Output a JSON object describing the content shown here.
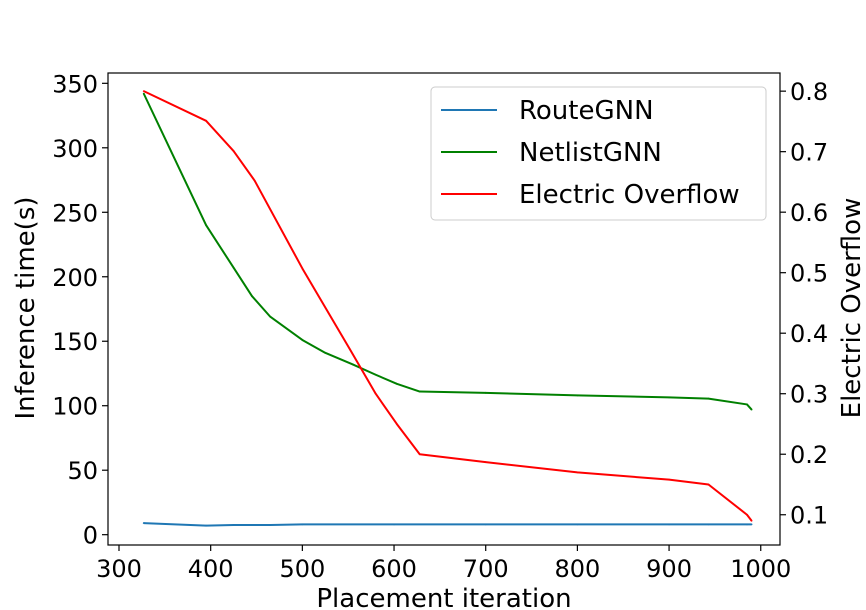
{
  "chart_data": {
    "type": "line",
    "title": "",
    "xlabel": "Placement iteration",
    "ylabel": "Inference time(s)",
    "y2label": "Electric Overflow",
    "xlim": [
      288,
      1021
    ],
    "ylim": [
      -8,
      358
    ],
    "y2lim": [
      0.05,
      0.83
    ],
    "xticks": [
      300,
      400,
      500,
      600,
      700,
      800,
      900,
      1000
    ],
    "yticks": [
      0,
      50,
      100,
      150,
      200,
      250,
      300,
      350
    ],
    "y2ticks": [
      0.1,
      0.2,
      0.3,
      0.4,
      0.5,
      0.6,
      0.7,
      0.8
    ],
    "grid": false,
    "legend_position": "top-right",
    "series": [
      {
        "name": "RouteGNN",
        "axis": "left",
        "color": "#1f77b4",
        "x": [
          327,
          395,
          425,
          465,
          500,
          600,
          700,
          800,
          900,
          943,
          985,
          990
        ],
        "y": [
          9,
          7,
          7.5,
          7.5,
          8,
          8,
          8,
          8,
          8,
          8,
          8,
          8
        ]
      },
      {
        "name": "NetlistGNN",
        "axis": "left",
        "color": "#008000",
        "x": [
          327,
          395,
          425,
          445,
          465,
          500,
          525,
          555,
          580,
          603,
          628,
          700,
          800,
          900,
          943,
          985,
          990
        ],
        "y": [
          342,
          240,
          207,
          185,
          169,
          151,
          141,
          132,
          124,
          117,
          111,
          110,
          108,
          106.5,
          105.5,
          101,
          97
        ]
      },
      {
        "name": "Electric Overflow",
        "axis": "right",
        "color": "#ff0000",
        "x": [
          327,
          395,
          425,
          448,
          500,
          552,
          580,
          603,
          628,
          700,
          800,
          900,
          943,
          985,
          990
        ],
        "y": [
          0.8,
          0.751,
          0.701,
          0.652,
          0.507,
          0.373,
          0.3,
          0.25,
          0.2,
          0.187,
          0.17,
          0.158,
          0.15,
          0.1,
          0.09
        ]
      }
    ]
  }
}
